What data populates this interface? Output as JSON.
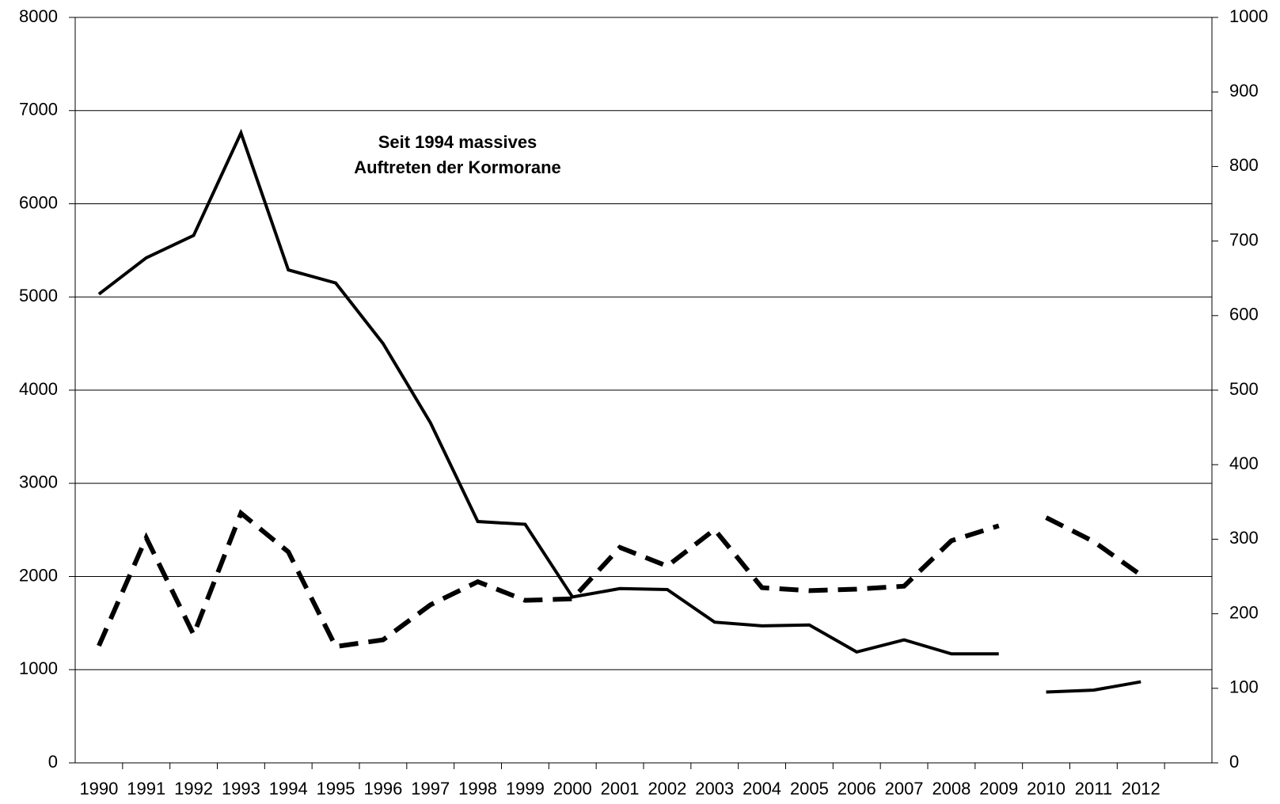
{
  "chart_data": {
    "type": "line",
    "annotation": [
      "Seit 1994 massives",
      "Auftreten der Kormorane"
    ],
    "categories": [
      "1990",
      "1991",
      "1992",
      "1993",
      "1994",
      "1995",
      "1996",
      "1997",
      "1998",
      "1999",
      "2000",
      "2001",
      "2002",
      "2003",
      "2004",
      "2005",
      "2006",
      "2007",
      "2008",
      "2009",
      "2010",
      "2011",
      "2012",
      null
    ],
    "series": [
      {
        "color": "#000000",
        "style": "solid",
        "axis": "y",
        "values": [
          5030,
          5420,
          5660,
          6760,
          5290,
          5150,
          4500,
          3650,
          2590,
          2560,
          1780,
          1870,
          1860,
          1510,
          1470,
          1480,
          1190,
          1320,
          1170,
          1170,
          null,
          null,
          null,
          null
        ]
      },
      {
        "color": "#000000",
        "style": "solid",
        "axis": "y",
        "values": [
          null,
          null,
          null,
          null,
          null,
          null,
          null,
          null,
          null,
          null,
          null,
          null,
          null,
          null,
          null,
          null,
          null,
          null,
          null,
          null,
          760,
          780,
          870,
          null
        ]
      },
      {
        "color": "#000000",
        "style": "dashed",
        "axis": "y2",
        "values": [
          157,
          302,
          172,
          335,
          283,
          156,
          165,
          212,
          243,
          218,
          220,
          289,
          264,
          313,
          235,
          231,
          233,
          237,
          298,
          318,
          null,
          null,
          null,
          null
        ]
      },
      {
        "color": "#000000",
        "style": "dashed",
        "axis": "y2",
        "values": [
          null,
          null,
          null,
          null,
          null,
          null,
          null,
          null,
          null,
          null,
          null,
          null,
          null,
          null,
          null,
          null,
          null,
          null,
          null,
          null,
          329,
          297,
          252,
          null
        ]
      }
    ],
    "ylim": [
      0,
      8000
    ],
    "yticks": [
      0,
      1000,
      2000,
      3000,
      4000,
      5000,
      6000,
      7000,
      8000
    ],
    "y2lim": [
      0,
      1000
    ],
    "y2ticks": [
      0,
      100,
      200,
      300,
      400,
      500,
      600,
      700,
      800,
      900,
      1000
    ],
    "grid": true
  }
}
